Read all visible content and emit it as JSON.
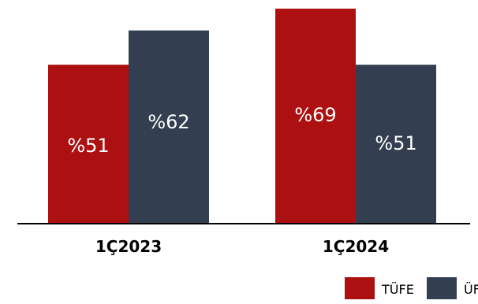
{
  "chart_data": {
    "type": "bar",
    "categories": [
      "1Ç2023",
      "1Ç2024"
    ],
    "series": [
      {
        "name": "TÜFE",
        "color": "#ad1010",
        "values": [
          51,
          69
        ],
        "labels": [
          "%51",
          "%69"
        ]
      },
      {
        "name": "ÜFE",
        "color": "#333f50",
        "values": [
          62,
          51
        ],
        "labels": [
          "%62",
          "%51"
        ]
      }
    ],
    "ylim": [
      0,
      70
    ],
    "grid": false,
    "legend": "bottom-right"
  }
}
